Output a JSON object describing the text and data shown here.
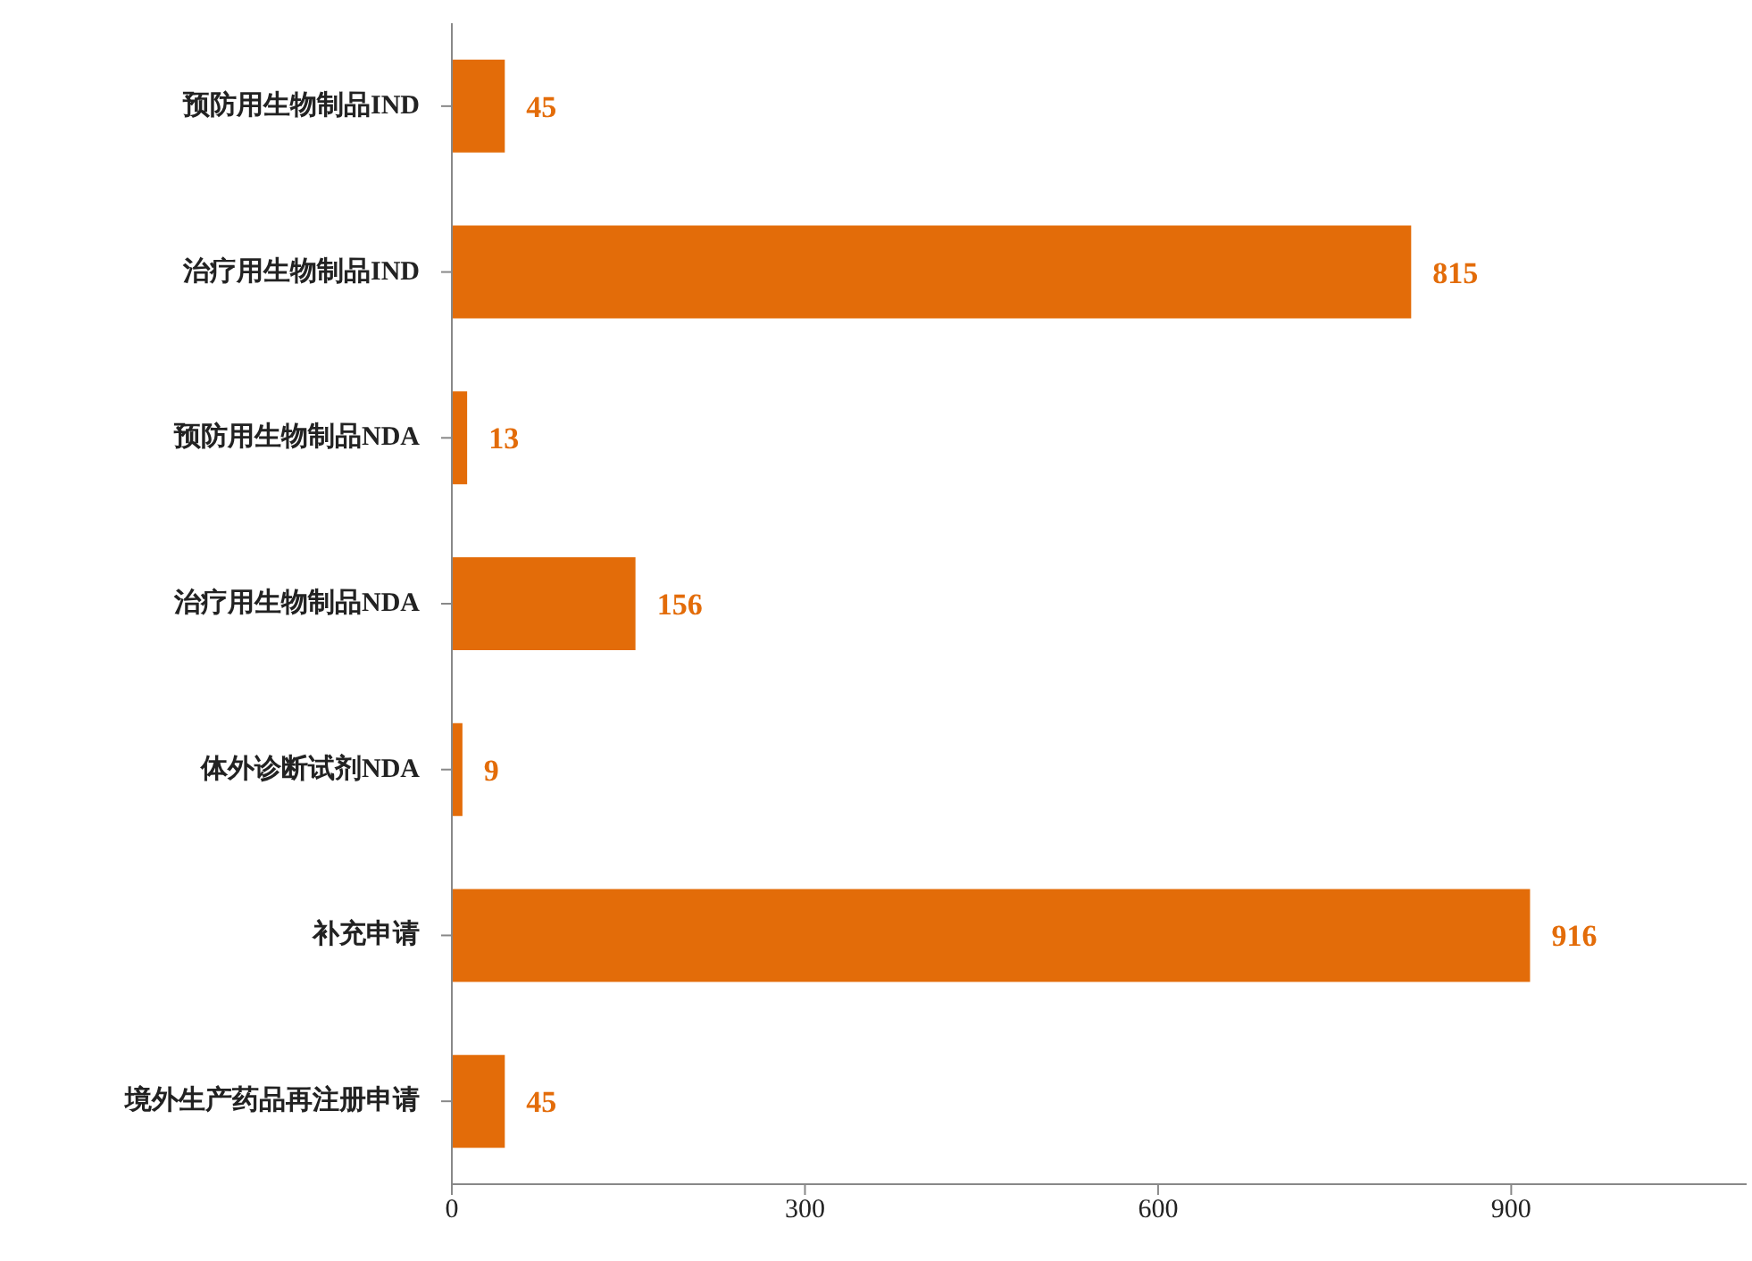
{
  "chart_data": {
    "type": "bar",
    "orientation": "horizontal",
    "categories": [
      "预防用生物制品IND",
      "治疗用生物制品IND",
      "预防用生物制品NDA",
      "治疗用生物制品NDA",
      "体外诊断试剂NDA",
      "补充申请",
      "境外生产药品再注册申请"
    ],
    "values": [
      45,
      815,
      13,
      156,
      9,
      916,
      45
    ],
    "color": "#e36c09",
    "xlim": [
      0,
      1100
    ],
    "xticks": [
      0,
      300,
      600,
      900
    ],
    "data_labels": true,
    "grid": false
  }
}
